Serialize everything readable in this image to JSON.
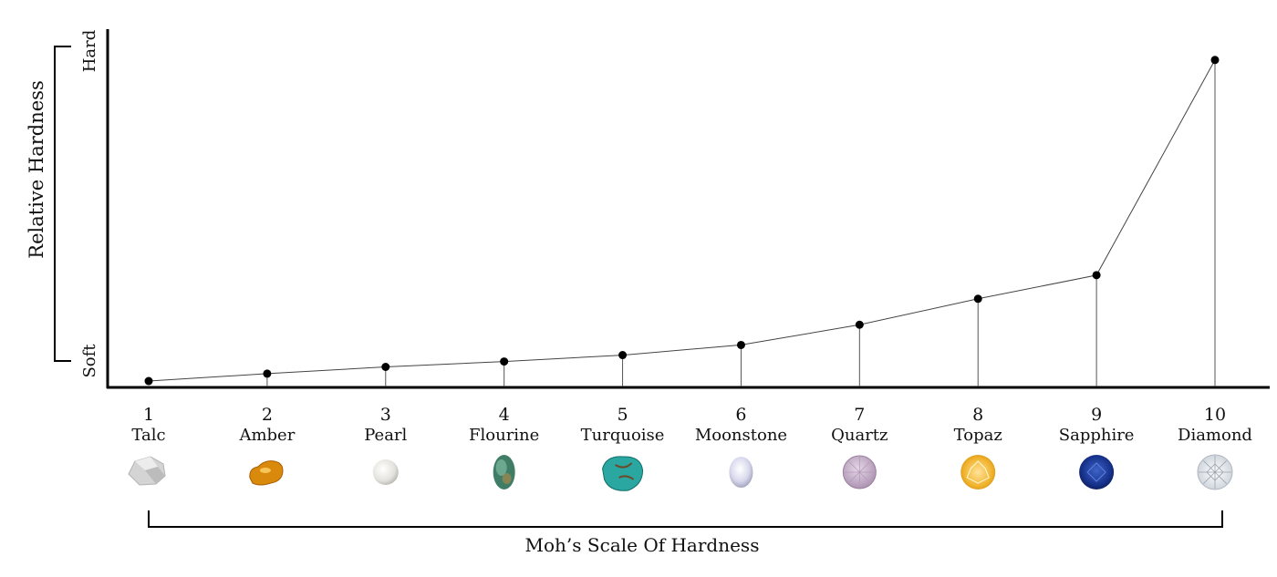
{
  "chart_data": {
    "type": "line",
    "ylabel": "Relative Hardness",
    "y_low_label": "Soft",
    "y_high_label": "Hard",
    "xtitle": "Moh’s Scale Of Hardness",
    "ylim": [
      0,
      100
    ],
    "grid": false,
    "minerals": [
      {
        "num": "1",
        "name": "Talc",
        "value": 0.8,
        "gem": "talc-gem-icon",
        "color": "#cfcfcf"
      },
      {
        "num": "2",
        "name": "Amber",
        "value": 3.0,
        "gem": "amber-gem-icon",
        "color": "#d98a0c"
      },
      {
        "num": "3",
        "name": "Pearl",
        "value": 5.0,
        "gem": "pearl-gem-icon",
        "color": "#ecebe6"
      },
      {
        "num": "4",
        "name": "Flourine",
        "value": 6.6,
        "gem": "flourine-gem-icon",
        "color": "#3f7d66"
      },
      {
        "num": "5",
        "name": "Turquoise",
        "value": 8.5,
        "gem": "turquoise-gem-icon",
        "color": "#2aa7a0"
      },
      {
        "num": "6",
        "name": "Moonstone",
        "value": 11.5,
        "gem": "moonstone-gem-icon",
        "color": "#cfcfe6"
      },
      {
        "num": "7",
        "name": "Quartz",
        "value": 17.5,
        "gem": "quartz-gem-icon",
        "color": "#c4aec9"
      },
      {
        "num": "8",
        "name": "Topaz",
        "value": 25.2,
        "gem": "topaz-gem-icon",
        "color": "#f1b832"
      },
      {
        "num": "9",
        "name": "Sapphire",
        "value": 32.2,
        "gem": "sapphire-gem-icon",
        "color": "#1a3b96"
      },
      {
        "num": "10",
        "name": "Diamond",
        "value": 96.0,
        "gem": "diamond-gem-icon",
        "color": "#e4e9ee"
      }
    ]
  }
}
